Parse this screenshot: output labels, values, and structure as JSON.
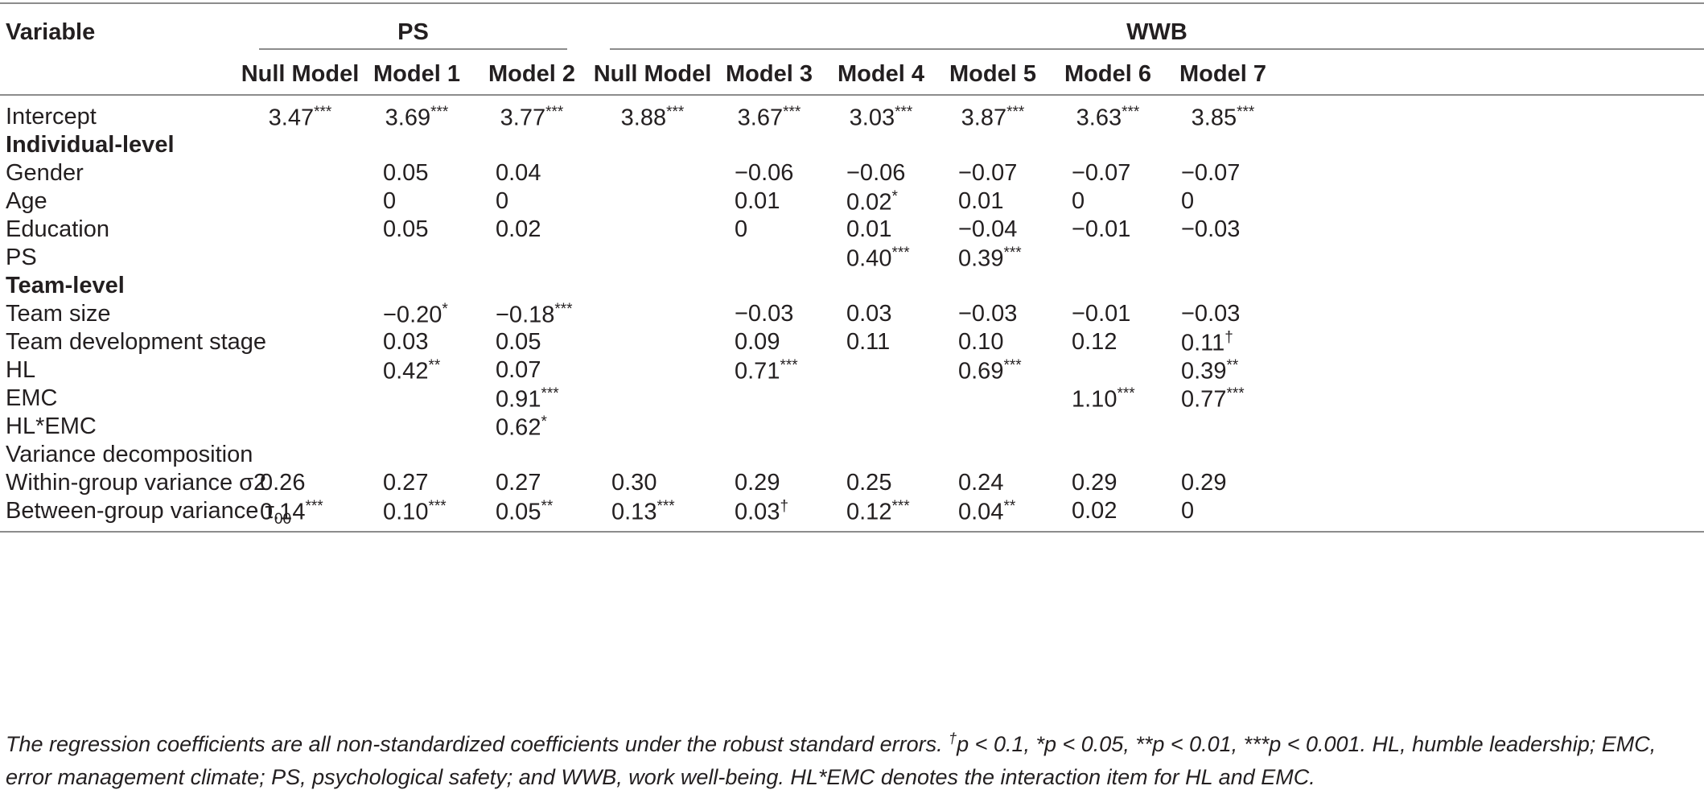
{
  "table": {
    "header": {
      "variable": "Variable",
      "group_ps": "PS",
      "group_wwb": "WWB",
      "models": [
        "Null Model",
        "Model 1",
        "Model 2",
        "Null Model",
        "Model 3",
        "Model 4",
        "Model 5",
        "Model 6",
        "Model 7"
      ]
    },
    "rows": [
      {
        "label": "Intercept",
        "bold": false,
        "cells": [
          "3.47***",
          "3.69***",
          "3.77***",
          "3.88***",
          "3.67***",
          "3.03***",
          "3.87***",
          "3.63***",
          "3.85***"
        ]
      },
      {
        "label": "Individual-level",
        "bold": true,
        "cells": [
          "",
          "",
          "",
          "",
          "",
          "",
          "",
          "",
          ""
        ]
      },
      {
        "label": "Gender",
        "bold": false,
        "cells": [
          "",
          "0.05",
          "0.04",
          "",
          "−0.06",
          "−0.06",
          "−0.07",
          "−0.07",
          "−0.07"
        ]
      },
      {
        "label": "Age",
        "bold": false,
        "cells": [
          "",
          "0",
          "0",
          "",
          "0.01",
          "0.02*",
          "0.01",
          "0",
          "0"
        ]
      },
      {
        "label": "Education",
        "bold": false,
        "cells": [
          "",
          "0.05",
          "0.02",
          "",
          "0",
          "0.01",
          "−0.04",
          "−0.01",
          "−0.03"
        ]
      },
      {
        "label": "PS",
        "bold": false,
        "cells": [
          "",
          "",
          "",
          "",
          "",
          "0.40***",
          "0.39***",
          "",
          ""
        ]
      },
      {
        "label": "Team-level",
        "bold": true,
        "cells": [
          "",
          "",
          "",
          "",
          "",
          "",
          "",
          "",
          ""
        ]
      },
      {
        "label": "Team size",
        "bold": false,
        "cells": [
          "",
          "−0.20*",
          "−0.18***",
          "",
          "−0.03",
          "0.03",
          "−0.03",
          "−0.01",
          "−0.03"
        ]
      },
      {
        "label": "Team development stage",
        "bold": false,
        "cells": [
          "",
          "0.03",
          "0.05",
          "",
          "0.09",
          "0.11",
          "0.10",
          "0.12",
          "0.11†"
        ]
      },
      {
        "label": "HL",
        "bold": false,
        "cells": [
          "",
          "0.42**",
          "0.07",
          "",
          "0.71***",
          "",
          "0.69***",
          "",
          "0.39**"
        ]
      },
      {
        "label": "EMC",
        "bold": false,
        "cells": [
          "",
          "",
          "0.91***",
          "",
          "",
          "",
          "",
          "1.10***",
          "0.77***"
        ]
      },
      {
        "label": "HL*EMC",
        "bold": false,
        "cells": [
          "",
          "",
          "0.62*",
          "",
          "",
          "",
          "",
          "",
          ""
        ]
      },
      {
        "label": "Variance decomposition",
        "bold": false,
        "cells": [
          "",
          "",
          "",
          "",
          "",
          "",
          "",
          "",
          ""
        ]
      },
      {
        "label": "Within-group variance σ2",
        "bold": false,
        "cells": [
          "0.26",
          "0.27",
          "0.27",
          "0.30",
          "0.29",
          "0.25",
          "0.24",
          "0.29",
          "0.29"
        ]
      },
      {
        "label": "Between-group variance τ",
        "label_sub": "00",
        "bold": false,
        "cells": [
          "0.14***",
          "0.10***",
          "0.05**",
          "0.13***",
          "0.03†",
          "0.12***",
          "0.04**",
          "0.02",
          "0"
        ]
      }
    ],
    "footnote": "The regression coefficients are all non-standardized coefficients under the robust standard errors. †p < 0.1, *p < 0.05, **p < 0.01, ***p < 0.001. HL, humble leadership; EMC, error management climate; PS, psychological safety; and WWB, work well-being. HL*EMC denotes the interaction item for HL and EMC."
  }
}
